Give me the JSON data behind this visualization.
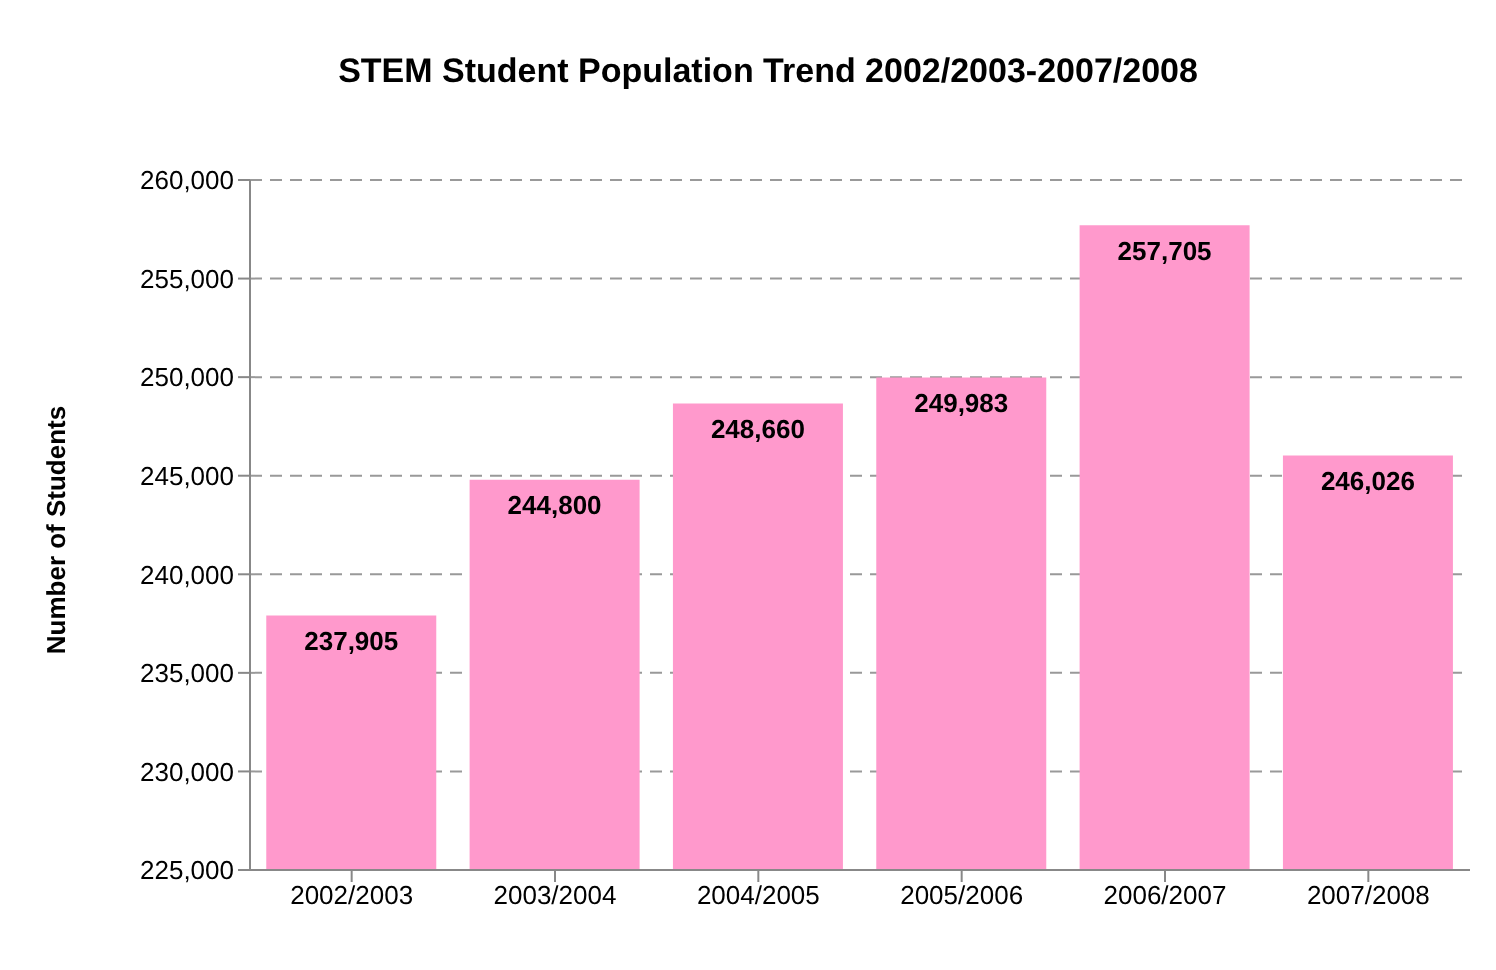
{
  "chart_data": {
    "type": "bar",
    "title": "STEM Student Population Trend 2002/2003-2007/2008",
    "ylabel": "Number of Students",
    "categories": [
      "2002/2003",
      "2003/2004",
      "2004/2005",
      "2005/2006",
      "2006/2007",
      "2007/2008"
    ],
    "values": [
      237905,
      244800,
      248660,
      249983,
      257705,
      246026
    ],
    "color": "#ff99cc",
    "value_labels": [
      "237,905",
      "244,800",
      "248,660",
      "249,983",
      "257,705",
      "246,026"
    ],
    "ylim": [
      225000,
      260000
    ],
    "yticks": [
      {
        "value": 225000,
        "label": "225,000"
      },
      {
        "value": 230000,
        "label": "230,000"
      },
      {
        "value": 235000,
        "label": "235,000"
      },
      {
        "value": 240000,
        "label": "240,000"
      },
      {
        "value": 245000,
        "label": "245,000"
      },
      {
        "value": 250000,
        "label": "250,000"
      },
      {
        "value": 255000,
        "label": "255,000"
      },
      {
        "value": 260000,
        "label": "260,000"
      }
    ],
    "grid": "y"
  }
}
